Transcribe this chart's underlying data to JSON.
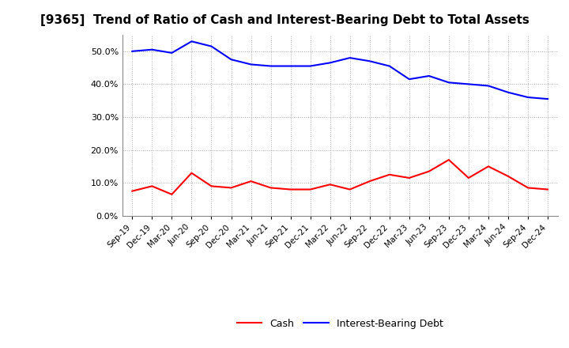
{
  "title": "[9365]  Trend of Ratio of Cash and Interest-Bearing Debt to Total Assets",
  "x_labels": [
    "Sep-19",
    "Dec-19",
    "Mar-20",
    "Jun-20",
    "Sep-20",
    "Dec-20",
    "Mar-21",
    "Jun-21",
    "Sep-21",
    "Dec-21",
    "Mar-22",
    "Jun-22",
    "Sep-22",
    "Dec-22",
    "Mar-23",
    "Jun-23",
    "Sep-23",
    "Dec-23",
    "Mar-24",
    "Jun-24",
    "Sep-24",
    "Dec-24"
  ],
  "cash": [
    7.5,
    9.0,
    6.5,
    13.0,
    9.0,
    8.5,
    10.5,
    8.5,
    8.0,
    8.0,
    9.5,
    8.0,
    10.5,
    12.5,
    11.5,
    13.5,
    17.0,
    11.5,
    15.0,
    12.0,
    8.5,
    8.0
  ],
  "ibd": [
    50.0,
    50.5,
    49.5,
    53.0,
    51.5,
    47.5,
    46.0,
    45.5,
    45.5,
    45.5,
    46.5,
    48.0,
    47.0,
    45.5,
    41.5,
    42.5,
    40.5,
    40.0,
    39.5,
    37.5,
    36.0,
    35.5
  ],
  "cash_color": "#ff0000",
  "ibd_color": "#0000ff",
  "ylim": [
    0,
    55
  ],
  "yticks": [
    0,
    10,
    20,
    30,
    40,
    50
  ],
  "background_color": "#ffffff",
  "plot_bg_color": "#ffffff",
  "grid_color": "#aaaaaa",
  "legend_cash": "Cash",
  "legend_ibd": "Interest-Bearing Debt",
  "title_fontsize": 11
}
